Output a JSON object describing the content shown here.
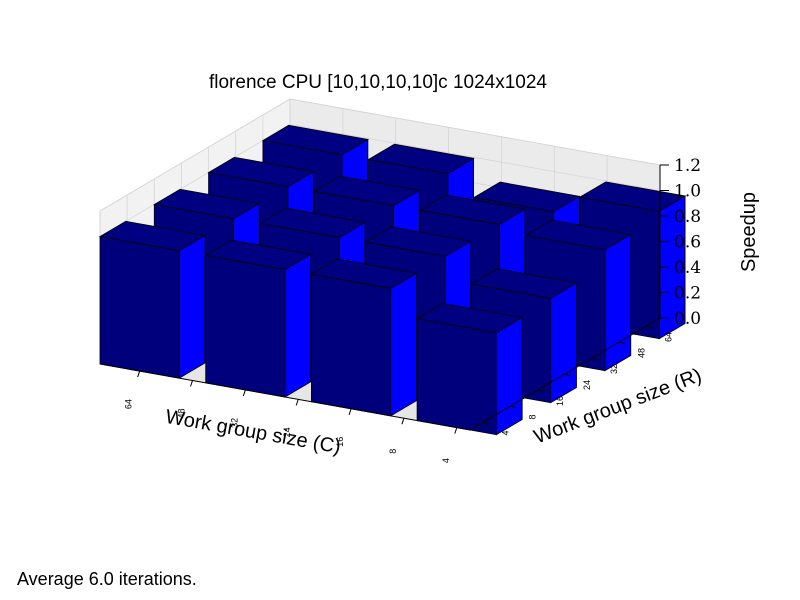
{
  "footer": {
    "note": "Average 6.0 iterations."
  },
  "chart_data": {
    "type": "bar3d",
    "title": "florence CPU [10,10,10,10]c 1024x1024",
    "xlabel": "Work group size (C)",
    "ylabel": "Work group size (R)",
    "zlabel": "Speedup",
    "x_categories": [
      "64",
      "48",
      "32",
      "24",
      "16",
      "8",
      "4"
    ],
    "y_categories": [
      "4",
      "8",
      "16",
      "24",
      "32",
      "48",
      "64"
    ],
    "zlim": [
      0.0,
      1.2
    ],
    "z_ticks": [
      "0.0",
      "0.2",
      "0.4",
      "0.6",
      "0.8",
      "1.0",
      "1.2"
    ],
    "grid": true,
    "bars": [
      {
        "x": "64",
        "y": "4",
        "value": 1.0
      },
      {
        "x": "64",
        "y": "16",
        "value": 1.0
      },
      {
        "x": "64",
        "y": "32",
        "value": 1.0
      },
      {
        "x": "64",
        "y": "64",
        "value": 1.0
      },
      {
        "x": "32",
        "y": "4",
        "value": 1.0
      },
      {
        "x": "32",
        "y": "16",
        "value": 1.0
      },
      {
        "x": "32",
        "y": "32",
        "value": 1.0
      },
      {
        "x": "32",
        "y": "64",
        "value": 1.0
      },
      {
        "x": "16",
        "y": "4",
        "value": 1.0
      },
      {
        "x": "16",
        "y": "16",
        "value": 1.0
      },
      {
        "x": "16",
        "y": "32",
        "value": 1.0
      },
      {
        "x": "16",
        "y": "64",
        "value": 0.85
      },
      {
        "x": "4",
        "y": "4",
        "value": 0.8
      },
      {
        "x": "4",
        "y": "16",
        "value": 0.82
      },
      {
        "x": "4",
        "y": "32",
        "value": 0.95
      },
      {
        "x": "4",
        "y": "64",
        "value": 1.0
      }
    ],
    "colors": {
      "top": "#000080",
      "front": "#00007d",
      "side": "#0000ff",
      "edge": "#000000",
      "pane": "#f2f2f2",
      "grid": "#d6d6d6"
    }
  }
}
